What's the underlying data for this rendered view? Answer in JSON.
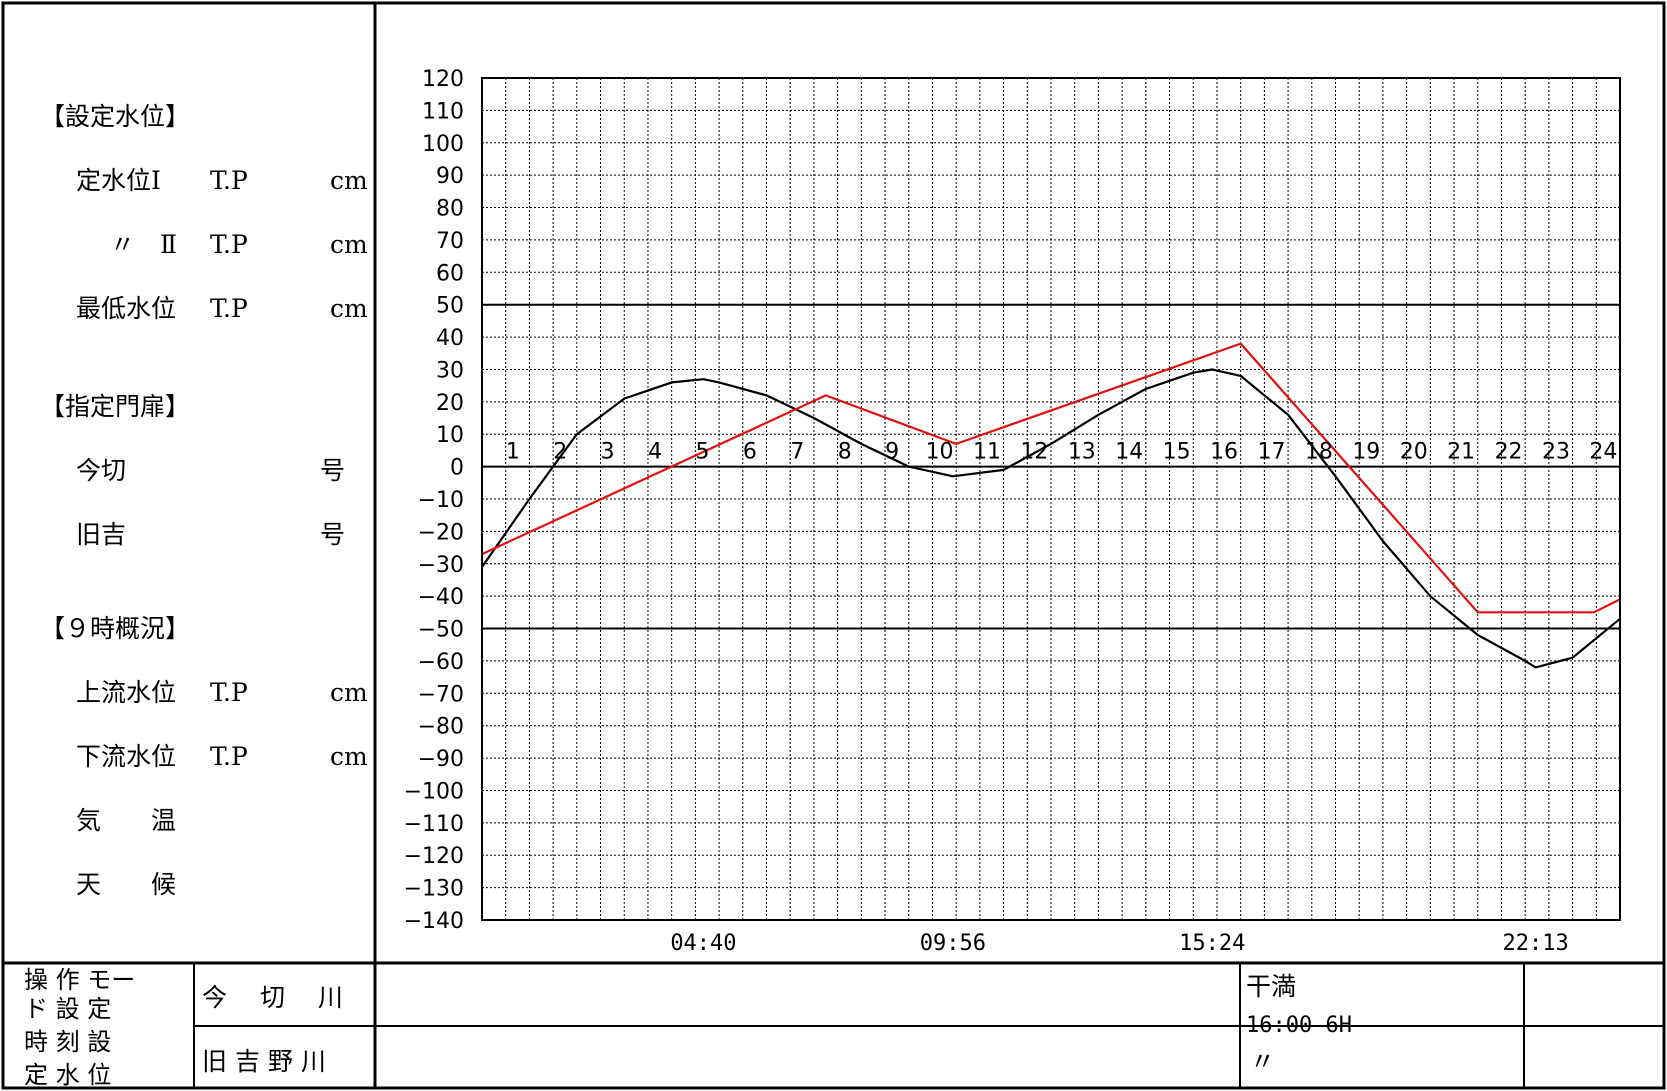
{
  "left_panel": {
    "section1_title": "【設定水位】",
    "row1": {
      "label": "定水位Ⅰ",
      "tp": "T.P",
      "unit": "cm"
    },
    "row2": {
      "label": "〃　Ⅱ",
      "tp": "T.P",
      "unit": "cm"
    },
    "row3": {
      "label": "最低水位",
      "tp": "T.P",
      "unit": "cm"
    },
    "section2_title": "【指定門扉】",
    "gate1": {
      "label": "今切",
      "unit": "号"
    },
    "gate2": {
      "label": "旧吉",
      "unit": "号"
    },
    "section3_title": "【９時概況】",
    "row4": {
      "label": "上流水位",
      "tp": "T.P",
      "unit": "cm"
    },
    "row5": {
      "label": "下流水位",
      "tp": "T.P",
      "unit": "cm"
    },
    "row6": {
      "label": "気　　温"
    },
    "row7": {
      "label": "天　　候"
    }
  },
  "bottom_table": {
    "mode_label_line1": "操 作 モー",
    "mode_label_line2": "ド 設 定",
    "mode_label_line3": "時 刻 設",
    "mode_label_line4": "定 水 位",
    "river1": "今　 切　 川",
    "river2": "旧 吉 野 川",
    "tide_label": "干満",
    "tide_value": "16:00 6H",
    "ditto": "〃"
  },
  "chart_data": {
    "type": "line",
    "ylim": [
      -140,
      120
    ],
    "yticks": [
      120,
      110,
      100,
      90,
      80,
      70,
      60,
      50,
      40,
      30,
      20,
      10,
      0,
      -10,
      -20,
      -30,
      -40,
      -50,
      -60,
      -70,
      -80,
      -90,
      -100,
      -110,
      -120,
      -130,
      -140
    ],
    "yticks_label": [
      "120",
      "110",
      "100",
      "90",
      "80",
      "70",
      "60",
      "50",
      "40",
      "30",
      "20",
      "10",
      "0",
      "−10",
      "−20",
      "−30",
      "−40",
      "−50",
      "−60",
      "−70",
      "−80",
      "−90",
      "−100",
      "−110",
      "−120",
      "−130",
      "−140"
    ],
    "xlim": [
      0,
      24
    ],
    "hour_labels": [
      "1",
      "2",
      "3",
      "4",
      "5",
      "6",
      "7",
      "8",
      "9",
      "10",
      "11",
      "12",
      "13",
      "14",
      "15",
      "16",
      "17",
      "18",
      "19",
      "20",
      "21",
      "22",
      "23",
      "24"
    ],
    "reference_lines": [
      50,
      -50,
      0
    ],
    "time_annotations": [
      {
        "x": 4.67,
        "label": "04:40"
      },
      {
        "x": 9.93,
        "label": "09:56"
      },
      {
        "x": 15.4,
        "label": "15:24"
      },
      {
        "x": 22.22,
        "label": "22:13"
      }
    ],
    "series": [
      {
        "color": "#000000",
        "x": [
          0,
          1,
          2,
          3,
          4,
          4.67,
          5,
          6,
          7,
          8,
          9,
          9.93,
          11,
          12,
          13,
          14,
          15,
          15.4,
          16,
          17,
          18,
          19,
          20,
          21,
          22,
          22.22,
          23,
          24
        ],
        "y": [
          -31,
          -10,
          10,
          21,
          26,
          27,
          26,
          22,
          15,
          7,
          0,
          -3,
          -1,
          7,
          16,
          24,
          29,
          30,
          28,
          16,
          -3,
          -23,
          -40,
          -52,
          -60,
          -62,
          -59,
          -47
        ]
      },
      {
        "color": "#e01010",
        "x": [
          0,
          7.25,
          10,
          16,
          21,
          23.45,
          24
        ],
        "y": [
          -27,
          22,
          7,
          38,
          -45,
          -45,
          -41
        ]
      }
    ]
  }
}
